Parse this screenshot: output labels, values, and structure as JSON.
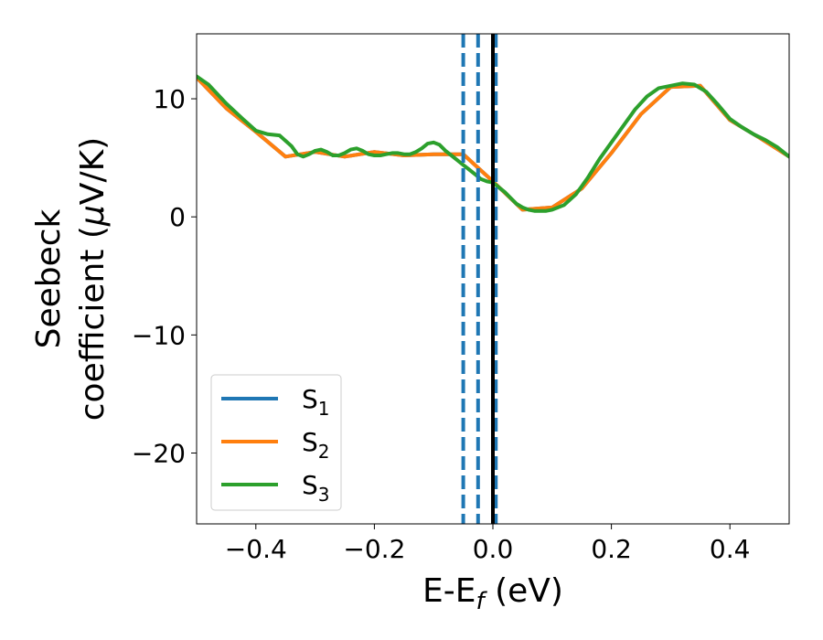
{
  "chart_data": {
    "type": "line",
    "xlabel": {
      "main": "E-E",
      "sub": "f",
      "unit": " (eV)"
    },
    "ylabel": {
      "line1": "Seebeck",
      "line2_pre": "coefficient  (",
      "mu": "μ",
      "line2_post": "V/K)"
    },
    "xlim": [
      -0.5,
      0.5
    ],
    "ylim": [
      -26,
      15.5
    ],
    "xticks": [
      -0.4,
      -0.2,
      0.0,
      0.2,
      0.4
    ],
    "xtick_labels": [
      "−0.4",
      "−0.2",
      "0.0",
      "0.2",
      "0.4"
    ],
    "yticks": [
      10,
      0,
      -10,
      -20
    ],
    "ytick_labels": [
      "10",
      "0",
      "−10",
      "−20"
    ],
    "grid": false,
    "legend_position": "lower-left",
    "series": [
      {
        "name_main": "S",
        "name_sub": "1",
        "color": "#1f77b4",
        "x": [
          -0.5,
          -0.45,
          -0.4,
          -0.35,
          -0.3,
          -0.25,
          -0.2,
          -0.15,
          -0.1,
          -0.05,
          0.0,
          0.05,
          0.1,
          0.15,
          0.2,
          0.25,
          0.3,
          0.35,
          0.4,
          0.45,
          0.5
        ],
        "y": [
          11.8,
          9.2,
          7.2,
          5.1,
          5.5,
          5.1,
          5.5,
          5.2,
          5.3,
          5.3,
          3.0,
          0.6,
          0.8,
          2.4,
          5.4,
          8.7,
          11.0,
          11.1,
          8.2,
          6.7,
          5.1
        ]
      },
      {
        "name_main": "S",
        "name_sub": "2",
        "color": "#ff7f0e",
        "x": [
          -0.5,
          -0.45,
          -0.4,
          -0.35,
          -0.3,
          -0.25,
          -0.2,
          -0.15,
          -0.1,
          -0.05,
          0.0,
          0.05,
          0.1,
          0.15,
          0.2,
          0.25,
          0.3,
          0.35,
          0.4,
          0.45,
          0.5
        ],
        "y": [
          11.8,
          9.2,
          7.2,
          5.1,
          5.5,
          5.1,
          5.5,
          5.2,
          5.3,
          5.3,
          3.0,
          0.6,
          0.8,
          2.4,
          5.4,
          8.7,
          11.0,
          11.1,
          8.2,
          6.7,
          5.1
        ]
      },
      {
        "name_main": "S",
        "name_sub": "3",
        "color": "#2ca02c",
        "x": [
          -0.5,
          -0.48,
          -0.45,
          -0.42,
          -0.4,
          -0.38,
          -0.36,
          -0.34,
          -0.33,
          -0.32,
          -0.31,
          -0.3,
          -0.29,
          -0.28,
          -0.27,
          -0.26,
          -0.25,
          -0.24,
          -0.23,
          -0.22,
          -0.21,
          -0.2,
          -0.19,
          -0.18,
          -0.17,
          -0.16,
          -0.15,
          -0.14,
          -0.13,
          -0.12,
          -0.11,
          -0.1,
          -0.09,
          -0.08,
          -0.07,
          -0.06,
          -0.05,
          -0.04,
          -0.03,
          -0.02,
          -0.01,
          0.0,
          0.01,
          0.02,
          0.03,
          0.04,
          0.05,
          0.06,
          0.07,
          0.08,
          0.09,
          0.1,
          0.12,
          0.14,
          0.16,
          0.18,
          0.2,
          0.22,
          0.24,
          0.26,
          0.28,
          0.3,
          0.32,
          0.34,
          0.36,
          0.38,
          0.4,
          0.42,
          0.44,
          0.46,
          0.48,
          0.5
        ],
        "y": [
          11.9,
          11.2,
          9.6,
          8.2,
          7.3,
          7.0,
          6.9,
          6.0,
          5.3,
          5.1,
          5.3,
          5.6,
          5.7,
          5.5,
          5.2,
          5.2,
          5.4,
          5.7,
          5.8,
          5.6,
          5.3,
          5.2,
          5.2,
          5.3,
          5.4,
          5.4,
          5.3,
          5.3,
          5.5,
          5.8,
          6.2,
          6.3,
          6.1,
          5.6,
          5.2,
          4.8,
          4.4,
          4.0,
          3.6,
          3.2,
          3.0,
          2.9,
          2.5,
          2.1,
          1.6,
          1.1,
          0.8,
          0.6,
          0.5,
          0.5,
          0.5,
          0.6,
          1.0,
          1.9,
          3.3,
          4.9,
          6.3,
          7.7,
          9.1,
          10.2,
          10.9,
          11.1,
          11.3,
          11.2,
          10.6,
          9.5,
          8.3,
          7.6,
          7.0,
          6.5,
          5.9,
          5.1
        ]
      }
    ],
    "vlines": [
      {
        "x": -0.05,
        "color": "#1f77b4",
        "style": "dashed"
      },
      {
        "x": -0.025,
        "color": "#1f77b4",
        "style": "dashed"
      },
      {
        "x": 0.005,
        "color": "#1f77b4",
        "style": "dashed"
      },
      {
        "x": 0.0,
        "color": "#000000",
        "style": "solid"
      }
    ]
  }
}
